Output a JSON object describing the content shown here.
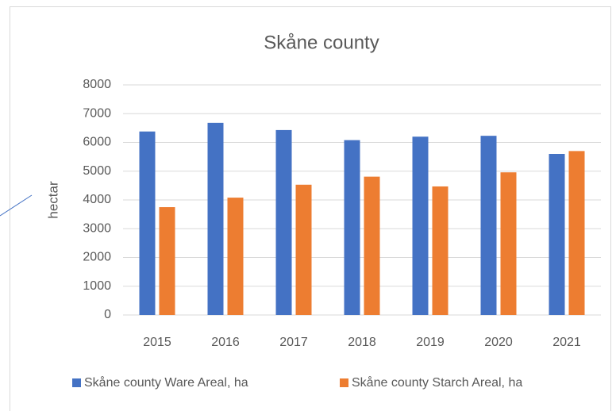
{
  "chart_data": {
    "type": "bar",
    "title": "Skåne county",
    "ylabel": "hectar",
    "categories": [
      "2015",
      "2016",
      "2017",
      "2018",
      "2019",
      "2020",
      "2021"
    ],
    "series": [
      {
        "name": "Skåne county Ware Areal, ha",
        "color": "#4472c4",
        "values": [
          6380,
          6680,
          6430,
          6080,
          6200,
          6230,
          5600
        ]
      },
      {
        "name": "Skåne county Starch Areal, ha",
        "color": "#ed7d31",
        "values": [
          3750,
          4080,
          4530,
          4810,
          4470,
          4960,
          5700
        ]
      }
    ],
    "ylim": [
      0,
      8000
    ],
    "yticks": [
      0,
      1000,
      2000,
      3000,
      4000,
      5000,
      6000,
      7000,
      8000
    ],
    "grid": true,
    "legend": "bottom"
  }
}
